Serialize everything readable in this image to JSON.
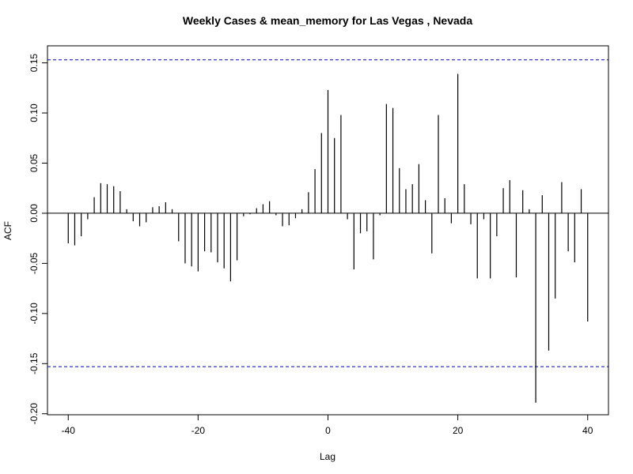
{
  "chart_data": {
    "type": "ccf",
    "title": "Weekly Cases & mean_memory for Las Vegas , Nevada",
    "xlabel": "Lag",
    "ylabel": "ACF",
    "x": [
      -40,
      -39,
      -38,
      -37,
      -36,
      -35,
      -34,
      -33,
      -32,
      -31,
      -30,
      -29,
      -28,
      -27,
      -26,
      -25,
      -24,
      -23,
      -22,
      -21,
      -20,
      -19,
      -18,
      -17,
      -16,
      -15,
      -14,
      -13,
      -12,
      -11,
      -10,
      -9,
      -8,
      -7,
      -6,
      -5,
      -4,
      -3,
      -2,
      -1,
      0,
      1,
      2,
      3,
      4,
      5,
      6,
      7,
      8,
      9,
      10,
      11,
      12,
      13,
      14,
      15,
      16,
      17,
      18,
      19,
      20,
      21,
      22,
      23,
      24,
      25,
      26,
      27,
      28,
      29,
      30,
      31,
      32,
      33,
      34,
      35,
      36,
      37,
      38,
      39,
      40
    ],
    "values": [
      -0.03,
      -0.032,
      -0.023,
      -0.006,
      0.016,
      0.03,
      0.029,
      0.027,
      0.022,
      0.004,
      -0.008,
      -0.013,
      -0.009,
      0.006,
      0.007,
      0.011,
      0.004,
      -0.028,
      -0.05,
      -0.053,
      -0.058,
      -0.038,
      -0.039,
      -0.049,
      -0.055,
      -0.068,
      -0.047,
      -0.003,
      -0.001,
      0.005,
      0.009,
      0.012,
      -0.002,
      -0.013,
      -0.012,
      -0.005,
      0.004,
      0.021,
      0.044,
      0.08,
      0.123,
      0.075,
      0.098,
      -0.006,
      -0.056,
      -0.02,
      -0.018,
      -0.046,
      -0.002,
      0.109,
      0.105,
      0.045,
      0.024,
      0.029,
      0.049,
      0.013,
      -0.04,
      0.098,
      0.015,
      -0.01,
      0.139,
      0.029,
      -0.011,
      -0.065,
      -0.006,
      -0.065,
      -0.023,
      0.025,
      0.033,
      -0.064,
      0.023,
      0.004,
      -0.189,
      0.018,
      -0.137,
      -0.085,
      0.031,
      -0.038,
      -0.049,
      0.024,
      -0.108
    ],
    "color": "#000000",
    "ci": [
      -0.153,
      0.153
    ],
    "ci_color": "#0000cc",
    "xlim": [
      -43.2,
      43.2
    ],
    "ylim": [
      -0.201,
      0.167
    ],
    "xticks": [
      -40,
      -20,
      0,
      20,
      40
    ],
    "yticks": [
      {
        "value": -0.2,
        "label": "-0.20"
      },
      -0.15,
      {
        "value": -0.1,
        "label": "-0.10"
      },
      -0.05,
      {
        "value": 0,
        "label": "0.00"
      },
      0.05,
      {
        "value": 0.1,
        "label": "0.10"
      },
      0.15
    ]
  }
}
